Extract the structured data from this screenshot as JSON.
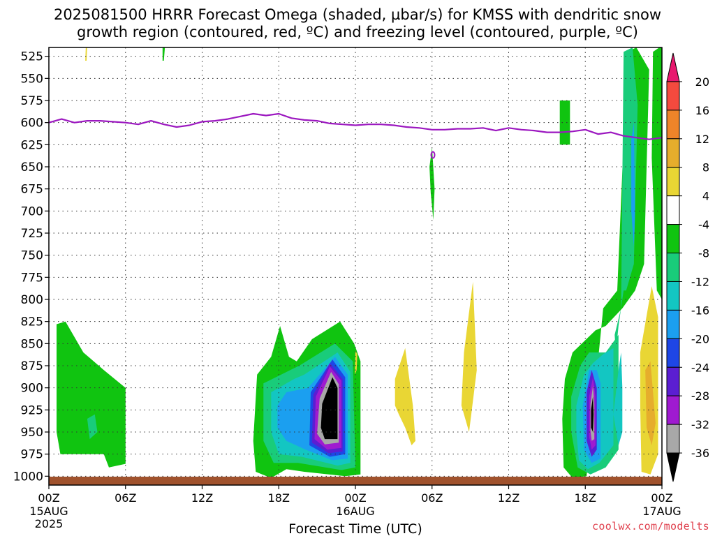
{
  "title": {
    "line1": "2025081500 HRRR Forecast Omega (shaded, µbar/s) for KMSS with dendritic snow",
    "line2": "growth region (contoured, red, ºC) and freezing level (contoured, purple, ºC)"
  },
  "credit": "coolwx.com/modelts",
  "chart_data": {
    "type": "heatmap",
    "xlabel": "Forecast Time (UTC)",
    "x_range_hours": [
      0,
      48
    ],
    "x_ticks": [
      {
        "hour": 0,
        "label": "00Z",
        "sublabel1": "15AUG",
        "sublabel2": "2025"
      },
      {
        "hour": 6,
        "label": "06Z"
      },
      {
        "hour": 12,
        "label": "12Z"
      },
      {
        "hour": 18,
        "label": "18Z"
      },
      {
        "hour": 24,
        "label": "00Z",
        "sublabel1": "16AUG"
      },
      {
        "hour": 30,
        "label": "06Z"
      },
      {
        "hour": 36,
        "label": "12Z"
      },
      {
        "hour": 42,
        "label": "18Z"
      },
      {
        "hour": 48,
        "label": "00Z",
        "sublabel1": "17AUG"
      }
    ],
    "ylabel": "",
    "y_axis": "pressure (hPa), inverted",
    "y_range": [
      515,
      1010
    ],
    "y_ticks": [
      525,
      550,
      575,
      600,
      625,
      650,
      675,
      700,
      725,
      750,
      775,
      800,
      825,
      850,
      875,
      900,
      925,
      950,
      975,
      1000
    ],
    "grid": true,
    "colorbar": {
      "position": "right",
      "labels": [
        "20",
        "16",
        "12",
        "8",
        "4",
        "-4",
        "-8",
        "-12",
        "-16",
        "-20",
        "-24",
        "-28",
        "-32",
        "-36"
      ],
      "bins": [
        {
          "from": 20,
          "to": 24,
          "color": "#e8186e"
        },
        {
          "from": 16,
          "to": 20,
          "color": "#f44a3e"
        },
        {
          "from": 12,
          "to": 16,
          "color": "#ee8429"
        },
        {
          "from": 8,
          "to": 12,
          "color": "#e6ad2c"
        },
        {
          "from": 4,
          "to": 8,
          "color": "#e9d634"
        },
        {
          "from": -4,
          "to": 4,
          "color": "#ffffff"
        },
        {
          "from": -8,
          "to": -4,
          "color": "#10c410"
        },
        {
          "from": -12,
          "to": -8,
          "color": "#19cc7a"
        },
        {
          "from": -16,
          "to": -12,
          "color": "#13c6c2"
        },
        {
          "from": -20,
          "to": -16,
          "color": "#1b9ff0"
        },
        {
          "from": -24,
          "to": -20,
          "color": "#1e46e6"
        },
        {
          "from": -28,
          "to": -24,
          "color": "#5b1ed2"
        },
        {
          "from": -32,
          "to": -28,
          "color": "#9f1ad0"
        },
        {
          "from": -36,
          "to": -32,
          "color": "#a8a8a8"
        },
        {
          "from": -40,
          "to": -36,
          "color": "#000000"
        }
      ]
    },
    "freezing_level": {
      "color": "#9c18c0",
      "hours": [
        0,
        1,
        2,
        3,
        4,
        5,
        6,
        7,
        8,
        9,
        10,
        11,
        12,
        13,
        14,
        15,
        16,
        17,
        18,
        19,
        20,
        21,
        22,
        23,
        24,
        25,
        26,
        27,
        28,
        29,
        30,
        31,
        32,
        33,
        34,
        35,
        36,
        37,
        38,
        39,
        40,
        41,
        42,
        43,
        44,
        45,
        46,
        47,
        48
      ],
      "pressure": [
        600,
        596,
        600,
        598,
        598,
        599,
        600,
        602,
        598,
        602,
        605,
        603,
        599,
        598,
        596,
        593,
        590,
        592,
        590,
        595,
        597,
        598,
        601,
        602,
        603,
        602,
        602,
        603,
        605,
        606,
        608,
        608,
        607,
        607,
        606,
        609,
        606,
        608,
        609,
        611,
        611,
        610,
        608,
        613,
        611,
        615,
        617,
        619,
        617
      ]
    },
    "omega_regions": [
      {
        "value": -6,
        "hours": [
          0.6,
          1.3,
          2.7,
          4.3,
          6.0,
          6.0,
          4.7,
          4.3,
          0.9,
          0.6
        ],
        "pressure": [
          828,
          825,
          860,
          880,
          900,
          986,
          990,
          975,
          975,
          950
        ]
      },
      {
        "value": -10,
        "hours": [
          3.0,
          3.6,
          3.8,
          3.2
        ],
        "pressure": [
          935,
          930,
          950,
          958
        ]
      },
      {
        "value": -6,
        "hours": [
          16.3,
          17.4,
          18.1,
          18.8,
          19.4,
          20.6,
          22.8,
          23.9,
          24.4,
          24.4,
          23.2,
          20.0,
          18.6,
          17.4,
          16.2,
          16.0
        ],
        "pressure": [
          885,
          865,
          830,
          865,
          870,
          845,
          825,
          850,
          870,
          998,
          1000,
          995,
          992,
          1002,
          995,
          960
        ]
      },
      {
        "value": -10,
        "hours": [
          16.8,
          18.9,
          19.6,
          22.4,
          23.8,
          24.0,
          22.9,
          19.5,
          17.6,
          16.8
        ],
        "pressure": [
          895,
          880,
          875,
          850,
          870,
          990,
          993,
          985,
          985,
          960
        ]
      },
      {
        "value": -14,
        "hours": [
          17.4,
          19.2,
          20.0,
          22.6,
          23.6,
          23.6,
          22.6,
          19.8,
          18.0,
          17.4
        ],
        "pressure": [
          905,
          890,
          885,
          860,
          882,
          985,
          988,
          978,
          975,
          950
        ]
      },
      {
        "value": -18,
        "hours": [
          17.9,
          18.6,
          20.3,
          22.4,
          23.4,
          23.4,
          22.2,
          20.1,
          18.6,
          17.9
        ],
        "pressure": [
          920,
          905,
          900,
          865,
          885,
          980,
          982,
          970,
          960,
          945
        ]
      },
      {
        "value": -22,
        "hours": [
          20.5,
          22.2,
          23.2,
          23.2,
          22.0,
          20.4
        ],
        "pressure": [
          905,
          868,
          888,
          975,
          978,
          965
        ]
      },
      {
        "value": -26,
        "hours": [
          20.7,
          22.0,
          23.0,
          23.0,
          21.9,
          20.6
        ],
        "pressure": [
          908,
          872,
          890,
          972,
          974,
          962
        ]
      },
      {
        "value": -30,
        "hours": [
          20.9,
          22.0,
          22.9,
          22.9,
          21.8,
          20.8
        ],
        "pressure": [
          910,
          876,
          892,
          968,
          970,
          958
        ]
      },
      {
        "value": -34,
        "hours": [
          21.2,
          22.1,
          22.7,
          22.7,
          21.6,
          21.0
        ],
        "pressure": [
          912,
          882,
          896,
          962,
          964,
          952
        ]
      },
      {
        "value": -38,
        "hours": [
          21.4,
          22.2,
          22.6,
          22.6,
          21.6,
          21.3
        ],
        "pressure": [
          918,
          888,
          900,
          958,
          958,
          945
        ]
      },
      {
        "value": -6,
        "hours": [
          40.4,
          41.0,
          42.8,
          43.6,
          44.9,
          45.9,
          46.6,
          47.0,
          46.0,
          45.3,
          44.5,
          43.4,
          42.1,
          41.0,
          40.3,
          40.2
        ],
        "pressure": [
          890,
          860,
          835,
          830,
          810,
          790,
          760,
          540,
          515,
          520,
          790,
          810,
          1000,
          1002,
          990,
          935
        ]
      },
      {
        "value": -10,
        "hours": [
          40.9,
          41.6,
          42.3,
          43.6,
          44.6,
          44.6,
          43.6,
          42.4,
          41.4,
          40.9
        ],
        "pressure": [
          910,
          875,
          860,
          860,
          840,
          970,
          990,
          998,
          990,
          950
        ]
      },
      {
        "value": -14,
        "hours": [
          41.3,
          41.9,
          42.6,
          43.4,
          44.2,
          44.2,
          43.1,
          42.2,
          41.5,
          41.3
        ],
        "pressure": [
          920,
          885,
          872,
          862,
          855,
          965,
          985,
          992,
          982,
          950
        ]
      },
      {
        "value": -18,
        "hours": [
          41.8,
          42.3,
          42.9,
          43.2,
          43.2,
          42.5,
          41.9
        ],
        "pressure": [
          920,
          880,
          880,
          895,
          980,
          985,
          970
        ]
      },
      {
        "value": -24,
        "hours": [
          42.1,
          42.5,
          42.9,
          42.9,
          42.5,
          42.1
        ],
        "pressure": [
          905,
          880,
          900,
          970,
          978,
          960
        ]
      },
      {
        "value": -30,
        "hours": [
          42.3,
          42.6,
          42.8,
          42.8,
          42.5,
          42.3
        ],
        "pressure": [
          910,
          888,
          910,
          965,
          970,
          955
        ]
      },
      {
        "value": -34,
        "hours": [
          42.4,
          42.6,
          42.7,
          42.7,
          42.5,
          42.4
        ],
        "pressure": [
          918,
          898,
          918,
          958,
          960,
          948
        ]
      },
      {
        "value": -38,
        "hours": [
          42.45,
          42.6,
          42.65,
          42.6,
          42.45
        ],
        "pressure": [
          925,
          910,
          930,
          950,
          945
        ]
      },
      {
        "value": -10,
        "hours": [
          44.8,
          45.0,
          45.7,
          46.1,
          45.8,
          45.2,
          45.0,
          44.6,
          44.4,
          44.3
        ],
        "pressure": [
          810,
          520,
          515,
          580,
          760,
          790,
          790,
          830,
          860,
          840
        ]
      },
      {
        "value": -14,
        "hours": [
          44.6,
          44.8,
          44.9,
          44.9,
          44.6,
          44.2
        ],
        "pressure": [
          880,
          860,
          900,
          950,
          965,
          930
        ]
      },
      {
        "value": -18,
        "hours": [
          45.6,
          45.8,
          45.9,
          45.8,
          45.6
        ],
        "pressure": [
          620,
          600,
          700,
          740,
          700
        ]
      },
      {
        "value": -6,
        "hours": [
          47.3,
          47.8,
          48.0,
          48.0,
          47.6,
          47.2
        ],
        "pressure": [
          520,
          515,
          515,
          800,
          790,
          640
        ]
      },
      {
        "value": -6,
        "hours": [
          30.0,
          30.2,
          30.1,
          29.9,
          29.8
        ],
        "pressure": [
          628,
          675,
          710,
          680,
          650
        ]
      },
      {
        "value": -6,
        "hours": [
          40.0,
          40.8,
          40.8,
          40.0
        ],
        "pressure": [
          575,
          575,
          625,
          625
        ]
      },
      {
        "value": 6,
        "hours": [
          2.9,
          3.0,
          2.95,
          2.85
        ],
        "pressure": [
          512,
          512,
          530,
          530
        ]
      },
      {
        "value": -6,
        "hours": [
          8.9,
          9.1,
          9.0,
          8.9
        ],
        "pressure": [
          512,
          512,
          530,
          530
        ]
      },
      {
        "value": 6,
        "hours": [
          27.1,
          27.9,
          28.5,
          28.7,
          28.4,
          27.9,
          27.4,
          27.1
        ],
        "pressure": [
          890,
          855,
          920,
          960,
          965,
          945,
          930,
          920
        ]
      },
      {
        "value": 6,
        "hours": [
          24.0,
          24.15,
          24.1,
          23.95
        ],
        "pressure": [
          858,
          862,
          880,
          885
        ]
      },
      {
        "value": 6,
        "hours": [
          32.5,
          33.2,
          33.5,
          32.9,
          32.3
        ],
        "pressure": [
          860,
          780,
          880,
          950,
          920
        ]
      },
      {
        "value": 6,
        "hours": [
          46.3,
          47.2,
          47.7,
          47.7,
          47.1,
          46.4,
          46.3
        ],
        "pressure": [
          860,
          785,
          820,
          975,
          998,
          995,
          920
        ]
      },
      {
        "value": 10,
        "hours": [
          46.7,
          47.1,
          47.5,
          47.2,
          46.8
        ],
        "pressure": [
          880,
          870,
          940,
          965,
          945
        ]
      }
    ]
  }
}
